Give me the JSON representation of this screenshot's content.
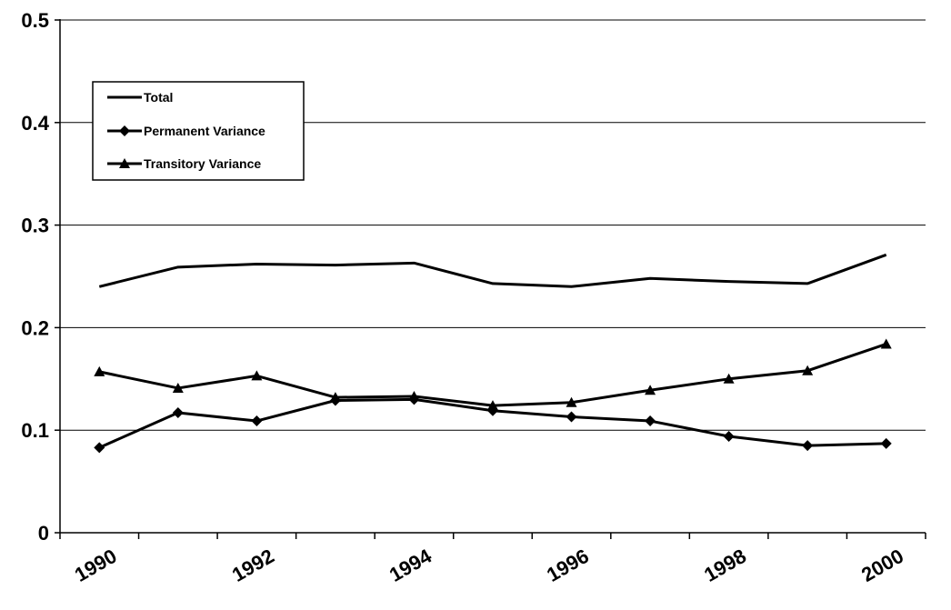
{
  "chart_data": {
    "type": "line",
    "title": "",
    "xlabel": "",
    "ylabel": "",
    "x": [
      1990,
      1991,
      1992,
      1993,
      1994,
      1995,
      1996,
      1997,
      1998,
      1999,
      2000
    ],
    "x_tick_labels": [
      "1990",
      "1992",
      "1994",
      "1996",
      "1998",
      "2000"
    ],
    "y_tick_labels": [
      "0",
      "0.1",
      "0.2",
      "0.3",
      "0.4",
      "0.5"
    ],
    "ylim": [
      0,
      0.5
    ],
    "grid": "horizontal",
    "legend_position": "top-left",
    "series": [
      {
        "name": "Total",
        "marker": "none",
        "values": [
          0.24,
          0.259,
          0.262,
          0.261,
          0.263,
          0.243,
          0.24,
          0.248,
          0.245,
          0.243,
          0.271
        ]
      },
      {
        "name": "Permanent Variance",
        "marker": "diamond",
        "values": [
          0.083,
          0.117,
          0.109,
          0.129,
          0.13,
          0.119,
          0.113,
          0.109,
          0.094,
          0.085,
          0.087
        ]
      },
      {
        "name": "Transitory Variance",
        "marker": "triangle",
        "values": [
          0.157,
          0.141,
          0.153,
          0.132,
          0.133,
          0.124,
          0.127,
          0.139,
          0.15,
          0.158,
          0.184
        ]
      }
    ],
    "line_color": "#000000"
  }
}
